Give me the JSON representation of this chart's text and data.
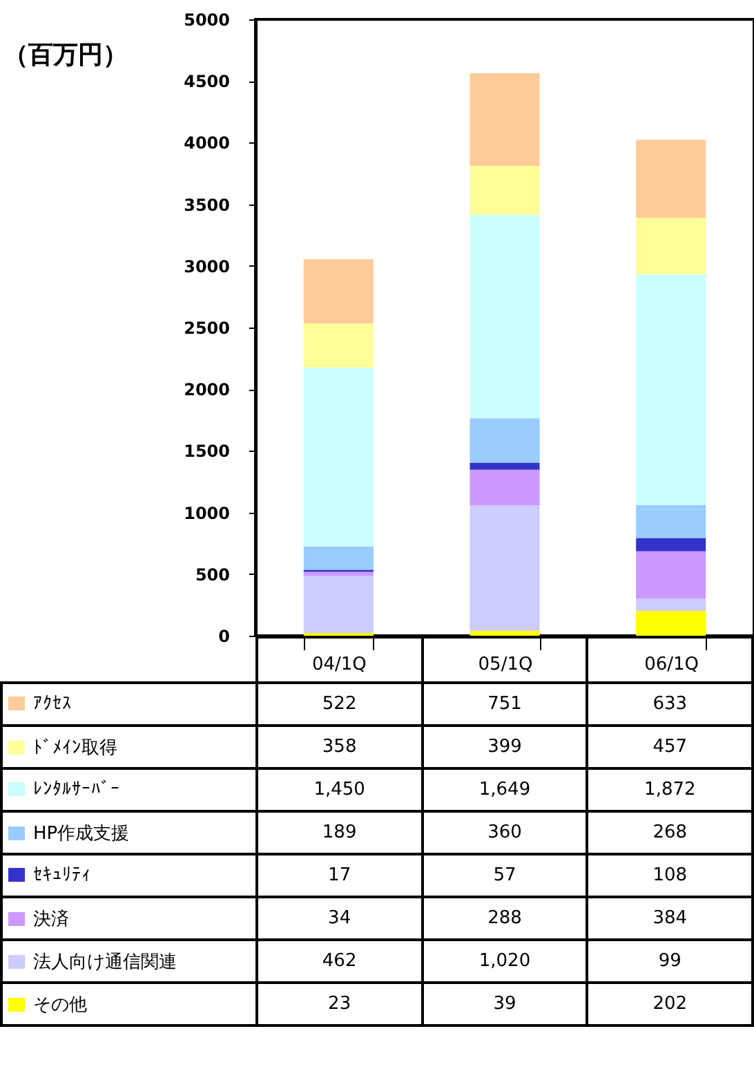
{
  "chart_data": {
    "type": "bar",
    "stacked": true,
    "ylabel": "（百万円）",
    "categories": [
      "04/1Q",
      "05/1Q",
      "06/1Q"
    ],
    "ylim": [
      0,
      5000
    ],
    "yticks": [
      0,
      500,
      1000,
      1500,
      2000,
      2500,
      3000,
      3500,
      4000,
      4500,
      5000
    ],
    "legend": "bottom",
    "series": [
      {
        "name": "その他",
        "color": "#ffff00",
        "values": [
          23,
          39,
          202
        ],
        "value_labels": [
          "23",
          "39",
          "202"
        ]
      },
      {
        "name": "法人向け通信関連",
        "color": "#ccccff",
        "values": [
          462,
          1020,
          99
        ],
        "value_labels": [
          "462",
          "1,020",
          "99"
        ]
      },
      {
        "name": "決済",
        "color": "#cc99ff",
        "values": [
          34,
          288,
          384
        ],
        "value_labels": [
          "34",
          "288",
          "384"
        ]
      },
      {
        "name": "ｾｷｭﾘﾃｨ",
        "color": "#3333cc",
        "values": [
          17,
          57,
          108
        ],
        "value_labels": [
          "17",
          "57",
          "108"
        ]
      },
      {
        "name": "HP作成支援",
        "color": "#99ccff",
        "values": [
          189,
          360,
          268
        ],
        "value_labels": [
          "189",
          "360",
          "268"
        ]
      },
      {
        "name": "ﾚﾝﾀﾙｻｰﾊﾞｰ",
        "color": "#ccffff",
        "values": [
          1450,
          1649,
          1872
        ],
        "value_labels": [
          "1,450",
          "1,649",
          "1,872"
        ]
      },
      {
        "name": "ﾄﾞﾒｲﾝ取得",
        "color": "#ffff99",
        "values": [
          358,
          399,
          457
        ],
        "value_labels": [
          "358",
          "399",
          "457"
        ]
      },
      {
        "name": "ｱｸｾｽ",
        "color": "#ffcc99",
        "values": [
          522,
          751,
          633
        ],
        "value_labels": [
          "522",
          "751",
          "633"
        ]
      }
    ]
  }
}
